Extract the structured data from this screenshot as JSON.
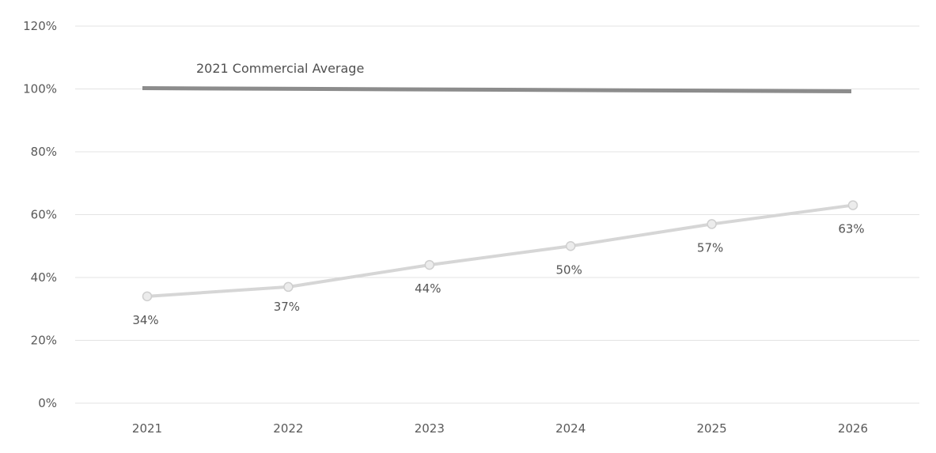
{
  "chart_data": {
    "type": "line",
    "title": "",
    "xlabel": "",
    "ylabel": "",
    "categories": [
      "2021",
      "2022",
      "2023",
      "2024",
      "2025",
      "2026"
    ],
    "ylim": [
      0,
      1.2
    ],
    "y_ticks": [
      {
        "value": 0,
        "label": "0%"
      },
      {
        "value": 0.2,
        "label": "20%"
      },
      {
        "value": 0.4,
        "label": "40%"
      },
      {
        "value": 0.6,
        "label": "60%"
      },
      {
        "value": 0.8,
        "label": "80%"
      },
      {
        "value": 1.0,
        "label": "100%"
      },
      {
        "value": 1.2,
        "label": "120%"
      }
    ],
    "grid": true,
    "legend": "none",
    "series": [
      {
        "values": [
          0.34,
          0.37,
          0.44,
          0.5,
          0.57,
          0.63
        ],
        "data_labels": [
          "34%",
          "37%",
          "44%",
          "50%",
          "57%",
          "63%"
        ],
        "color": "#d6d6d6",
        "marker": "circle"
      }
    ],
    "reference_line": {
      "label": "2021 Commercial Average",
      "value": 1.0,
      "color": "#8c8c8c"
    }
  }
}
